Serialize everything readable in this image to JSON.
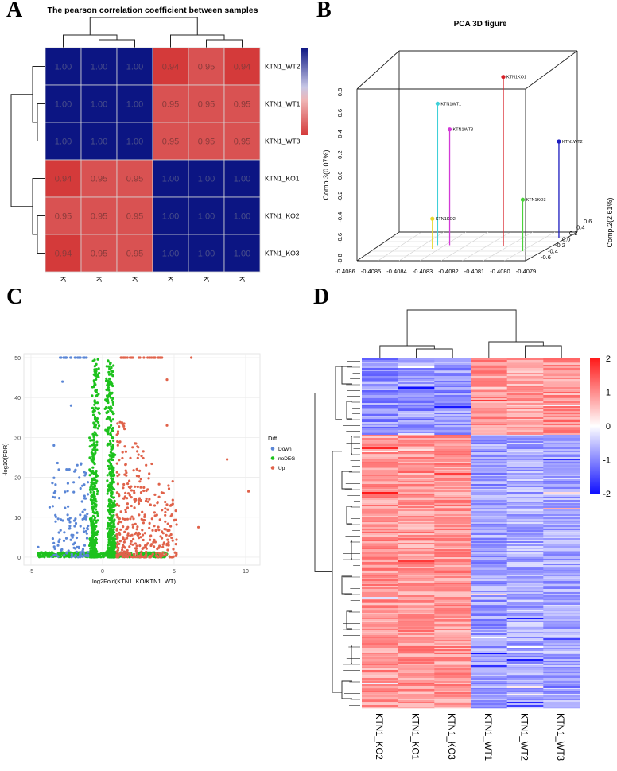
{
  "chart_data": [
    {
      "panel_label": "A",
      "type": "heatmap",
      "title": "The pearson correlation coefficient between samples",
      "rows": [
        "KTN1_WT2",
        "KTN1_WT1",
        "KTN1_WT3",
        "KTN1_KO1",
        "KTN1_KO2",
        "KTN1_KO3"
      ],
      "columns": [
        "KTN1_WT2",
        "KTN1_WT1",
        "KTN1_WT3",
        "KTN1_KO1",
        "KTN1_KO2",
        "KTN1_KO3"
      ],
      "values": [
        [
          "1.00",
          "1.00",
          "1.00",
          "0.94",
          "0.95",
          "0.94"
        ],
        [
          "1.00",
          "1.00",
          "1.00",
          "0.95",
          "0.95",
          "0.95"
        ],
        [
          "1.00",
          "1.00",
          "1.00",
          "0.95",
          "0.95",
          "0.95"
        ],
        [
          "0.94",
          "0.95",
          "0.95",
          "1.00",
          "1.00",
          "1.00"
        ],
        [
          "0.95",
          "0.95",
          "0.95",
          "1.00",
          "1.00",
          "1.00"
        ],
        [
          "0.94",
          "0.95",
          "0.95",
          "1.00",
          "1.00",
          "1.00"
        ]
      ],
      "colorbar": {
        "ticks": [
          "1",
          "0.99",
          "0.98",
          "0.97",
          "0.96",
          "0.95"
        ],
        "low_color": "#d43a3a",
        "high_color": "#0c1583"
      }
    },
    {
      "panel_label": "B",
      "type": "scatter",
      "title": "PCA 3D figure",
      "xlabel": "Comp.1(97.30%)",
      "ylabel": "Comp.3(0.07%)",
      "zlabel": "Comp.2(2.61%)",
      "xticks": [
        "-0.4086",
        "-0.4085",
        "-0.4084",
        "-0.4083",
        "-0.4082",
        "-0.4081",
        "-0.4080",
        "-0.4079"
      ],
      "yticks": [
        "0.8",
        "0.6",
        "0.4",
        "0.2",
        "0.0",
        "-0.2",
        "-0.4",
        "-0.6",
        "-0.8"
      ],
      "zticks": [
        "0.6",
        "0.4",
        "0.2",
        "0.0",
        "-0.2",
        "-0.4",
        "-0.6"
      ],
      "points": [
        {
          "label": "KTN1KO1",
          "comp1": -0.40808,
          "comp3": 0.78,
          "comp2": 0.0,
          "color": "#d81f26"
        },
        {
          "label": "KTN1WT1",
          "comp1": -0.40836,
          "comp3": 0.52,
          "comp2": 0.05,
          "color": "#3fd0d8"
        },
        {
          "label": "KTN1WT3",
          "comp1": -0.40831,
          "comp3": 0.28,
          "comp2": 0.05,
          "color": "#d23ad6"
        },
        {
          "label": "KTN1WT2",
          "comp1": -0.4079,
          "comp3": 0.1,
          "comp2": 0.35,
          "color": "#1c1cbf"
        },
        {
          "label": "KTN1KO3",
          "comp1": -0.40797,
          "comp3": -0.32,
          "comp2": -0.2,
          "color": "#4ad13a"
        },
        {
          "label": "KTN1KO2",
          "comp1": -0.40836,
          "comp3": -0.52,
          "comp2": -0.1,
          "color": "#e6d82c"
        }
      ]
    },
    {
      "panel_label": "C",
      "type": "scatter",
      "xlabel": "log2Fold(KTN1_KO/KTN1_WT)",
      "ylabel": "-log10(FDR)",
      "xlim": [
        -5.5,
        11
      ],
      "ylim": [
        -2,
        51
      ],
      "xticks": [
        -5,
        0,
        5,
        10
      ],
      "yticks": [
        0,
        10,
        20,
        30,
        40,
        50
      ],
      "legend": {
        "title": "Diff",
        "items": [
          {
            "name": "Down",
            "color": "#5a86d6"
          },
          {
            "name": "noDEG",
            "color": "#1dc21d"
          },
          {
            "name": "Up",
            "color": "#e0624a"
          }
        ]
      },
      "highlighted_points": [
        {
          "x": 10.2,
          "y": 16.5,
          "diff": "Up"
        },
        {
          "x": 8.7,
          "y": 24.5,
          "diff": "Up"
        },
        {
          "x": 6.2,
          "y": 50,
          "diff": "Up"
        },
        {
          "x": 4.5,
          "y": 44.5,
          "diff": "Up"
        },
        {
          "x": 4.5,
          "y": 33,
          "diff": "Up"
        },
        {
          "x": 4.9,
          "y": 19,
          "diff": "Up"
        },
        {
          "x": 6.7,
          "y": 7.5,
          "diff": "Up"
        },
        {
          "x": -4.5,
          "y": 2.5,
          "diff": "Down"
        },
        {
          "x": -3.7,
          "y": 12.5,
          "diff": "Down"
        },
        {
          "x": -3.4,
          "y": 28,
          "diff": "Down"
        },
        {
          "x": -2.8,
          "y": 44,
          "diff": "Down"
        },
        {
          "x": -2.2,
          "y": 38,
          "diff": "Down"
        }
      ]
    },
    {
      "panel_label": "D",
      "type": "heatmap",
      "columns": [
        "KTN1_KO2",
        "KTN1_KO1",
        "KTN1_KO3",
        "KTN1_WT1",
        "KTN1_WT2",
        "KTN1_WT3"
      ],
      "colorbar": {
        "ticks": [
          "2",
          "1",
          "0",
          "-1",
          "-2"
        ],
        "low_color": "#1010ff",
        "mid_color": "#ffffff",
        "high_color": "#ff1a1a"
      },
      "blocks": [
        {
          "rows_fraction": 0.22,
          "values": [
            -0.9,
            -0.9,
            -0.9,
            0.9,
            0.8,
            0.9
          ]
        },
        {
          "rows_fraction": 0.78,
          "values": [
            0.9,
            0.9,
            0.9,
            -0.8,
            -0.7,
            -0.7
          ]
        }
      ]
    }
  ]
}
